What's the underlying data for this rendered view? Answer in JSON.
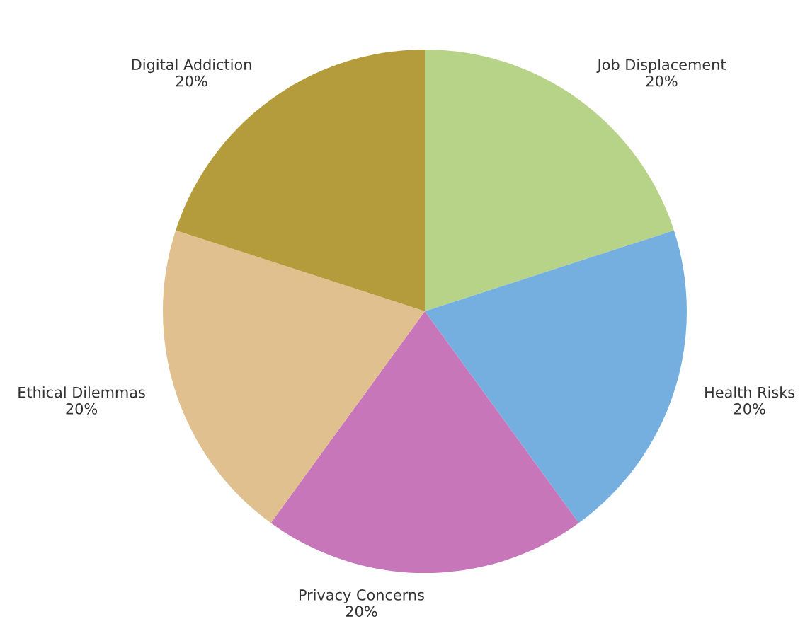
{
  "chart_data": {
    "type": "pie",
    "categories": [
      "Job Displacement",
      "Health Risks",
      "Privacy Concerns",
      "Ethical Dilemmas",
      "Digital Addiction"
    ],
    "values": [
      20,
      20,
      20,
      20,
      20
    ],
    "value_labels": [
      "20%",
      "20%",
      "20%",
      "20%",
      "20%"
    ],
    "colors": [
      "#b7d388",
      "#74afe0",
      "#c777b9",
      "#dfc08e",
      "#b49c3c"
    ]
  }
}
